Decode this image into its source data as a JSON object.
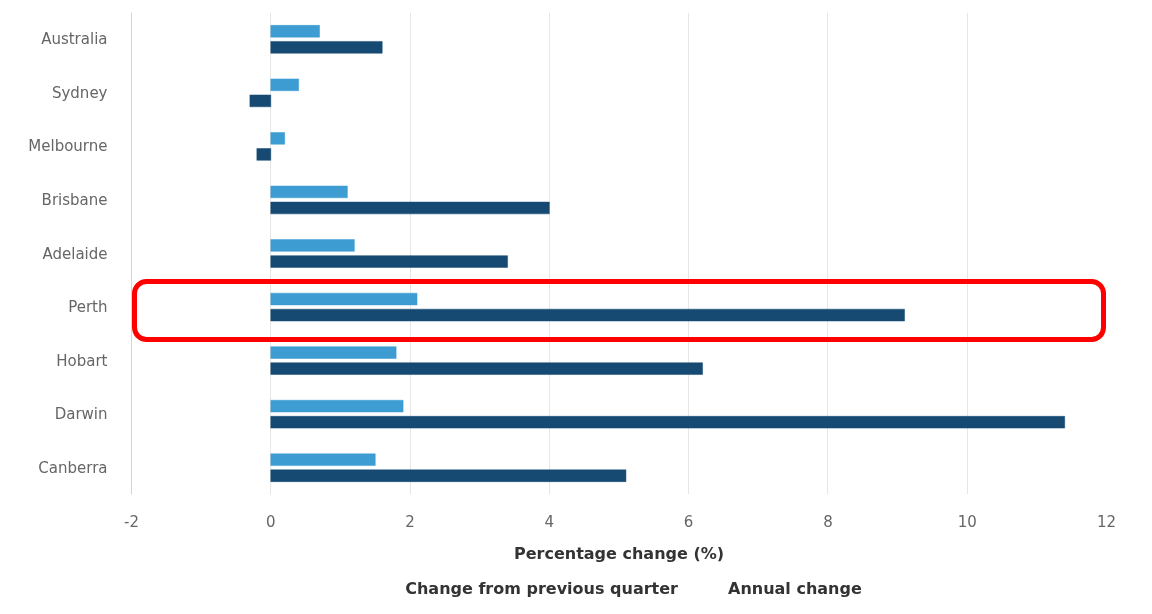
{
  "chart_data": {
    "type": "bar",
    "orientation": "horizontal",
    "xlabel": "Percentage change (%)",
    "categories": [
      "Australia",
      "Sydney",
      "Melbourne",
      "Brisbane",
      "Adelaide",
      "Perth",
      "Hobart",
      "Darwin",
      "Canberra"
    ],
    "series": [
      {
        "name": "Change from previous quarter",
        "color": "#3d9cd2",
        "values": [
          0.7,
          0.4,
          0.2,
          1.1,
          1.2,
          2.1,
          1.8,
          1.9,
          1.5
        ]
      },
      {
        "name": "Annual change",
        "color": "#164a72",
        "values": [
          1.6,
          -0.3,
          -0.2,
          4.0,
          3.4,
          9.1,
          6.2,
          11.4,
          5.1
        ]
      }
    ],
    "xlim": [
      -2,
      12
    ],
    "xticks": [
      -2,
      0,
      2,
      4,
      6,
      8,
      10,
      12
    ],
    "grid": "x",
    "legend": "bottom"
  }
}
